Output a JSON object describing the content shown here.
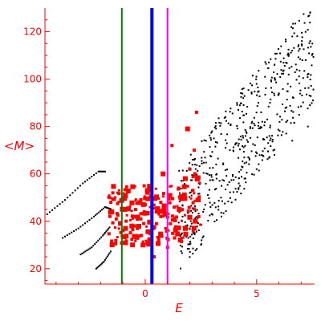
{
  "chart_data": {
    "type": "scatter",
    "title": "",
    "xlabel": "E",
    "ylabel": "<M>",
    "xlim": [
      -4.5,
      7.6
    ],
    "ylim": [
      13.5,
      130
    ],
    "xticks": [
      0,
      5
    ],
    "xtick_labels": [
      "0",
      "5"
    ],
    "yticks": [
      20,
      40,
      60,
      80,
      100,
      120
    ],
    "ytick_labels": [
      "20",
      "40",
      "60",
      "80",
      "100",
      "120"
    ],
    "grid": false,
    "legend": "none",
    "colors": {
      "axes": "#ff0000",
      "cloud": "#000000",
      "red_points": "#ff0000",
      "line_green": "#008000",
      "line_blue": "#0000ff",
      "line_magenta": "#ff00ff"
    },
    "vertical_lines": [
      {
        "x": -1.05,
        "color": "#008000"
      },
      {
        "x": 0.3,
        "color": "#0000ff"
      },
      {
        "x": 1.0,
        "color": "#ff00ff"
      }
    ],
    "black_curves": [
      {
        "x": [
          -4.4,
          -3.6,
          -2.8,
          -2.1,
          -1.75
        ],
        "y": [
          43,
          49,
          56,
          61,
          61
        ]
      },
      {
        "x": [
          -3.7,
          -3.0,
          -2.3,
          -1.8,
          -1.5
        ],
        "y": [
          33,
          37,
          42,
          46,
          45
        ]
      },
      {
        "x": [
          -2.9,
          -2.4,
          -1.9,
          -1.55
        ],
        "y": [
          26,
          29,
          34,
          38
        ]
      },
      {
        "x": [
          -2.2,
          -1.85,
          -1.5
        ],
        "y": [
          20,
          23,
          28
        ]
      }
    ],
    "black_cloud_samples": [
      [
        1.6,
        45
      ],
      [
        2.0,
        52
      ],
      [
        2.4,
        56
      ],
      [
        2.8,
        60
      ],
      [
        3.2,
        58
      ],
      [
        3.5,
        64
      ],
      [
        3.8,
        70
      ],
      [
        4.1,
        73
      ],
      [
        4.5,
        76
      ],
      [
        4.8,
        82
      ],
      [
        5.2,
        86
      ],
      [
        5.6,
        90
      ],
      [
        6.0,
        94
      ],
      [
        6.4,
        98
      ],
      [
        6.8,
        104
      ],
      [
        7.2,
        108
      ],
      [
        7.5,
        115
      ],
      [
        7.4,
        128
      ],
      [
        6.6,
        118
      ],
      [
        5.8,
        106
      ],
      [
        5.0,
        98
      ],
      [
        4.4,
        92
      ],
      [
        3.6,
        84
      ],
      [
        3.0,
        78
      ],
      [
        2.2,
        66
      ],
      [
        2.6,
        44
      ],
      [
        3.4,
        50
      ],
      [
        4.2,
        56
      ],
      [
        5.0,
        62
      ],
      [
        5.8,
        68
      ],
      [
        6.6,
        74
      ],
      [
        7.3,
        80
      ]
    ],
    "red_points": [
      [
        -1.5,
        44
      ],
      [
        -1.3,
        41
      ],
      [
        -1.0,
        36
      ],
      [
        -0.8,
        45
      ],
      [
        -0.6,
        38
      ],
      [
        -0.4,
        34
      ],
      [
        -0.2,
        41
      ],
      [
        0.0,
        47
      ],
      [
        0.1,
        53
      ],
      [
        0.3,
        44
      ],
      [
        0.5,
        39
      ],
      [
        0.7,
        48
      ],
      [
        0.9,
        43
      ],
      [
        1.1,
        51
      ],
      [
        1.3,
        46
      ],
      [
        1.5,
        54
      ],
      [
        1.8,
        58
      ],
      [
        2.0,
        62
      ],
      [
        2.2,
        70
      ],
      [
        0.6,
        33
      ],
      [
        -0.1,
        30
      ],
      [
        0.4,
        25
      ],
      [
        1.0,
        29
      ],
      [
        -1.6,
        50
      ],
      [
        1.9,
        79
      ],
      [
        2.3,
        86
      ],
      [
        0.2,
        36
      ],
      [
        -0.5,
        42
      ],
      [
        0.8,
        60
      ],
      [
        1.2,
        72
      ]
    ]
  }
}
